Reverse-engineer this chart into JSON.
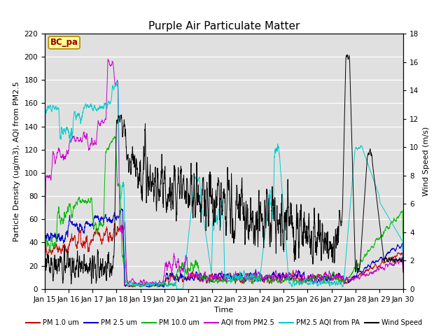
{
  "title": "Purple Air Particulate Matter",
  "xlabel": "Time",
  "ylabel_left": "Particle Density (ug/m3), AQI from PM2.5",
  "ylabel_right": "Wind Speed (m/s)",
  "annotation": "BC_pa",
  "x_tick_labels": [
    "Jan 15",
    "Jan 16",
    "Jan 17",
    "Jan 18",
    "Jan 19",
    "Jan 20",
    "Jan 21",
    "Jan 22",
    "Jan 23",
    "Jan 24",
    "Jan 25",
    "Jan 26",
    "Jan 27",
    "Jan 28",
    "Jan 29",
    "Jan 30"
  ],
  "ylim_left": [
    0,
    220
  ],
  "ylim_right": [
    0,
    18
  ],
  "legend_labels": [
    "PM 1.0 um",
    "PM 2.5 um",
    "PM 10.0 um",
    "AQI from PM2.5",
    "PM2.5 AQI from PA",
    "Wind Speed"
  ],
  "legend_colors": [
    "#cc0000",
    "#0000cc",
    "#00bb00",
    "#cc00cc",
    "#00cccc",
    "#000000"
  ],
  "background_color": "#ffffff",
  "plot_bg_color": "#e0e0e0",
  "title_fontsize": 11,
  "label_fontsize": 8,
  "tick_fontsize": 7.5,
  "right_tick_labels": [
    0,
    2,
    4,
    6,
    8,
    10,
    12,
    14,
    16,
    18
  ],
  "left_tick_labels": [
    0,
    20,
    40,
    60,
    80,
    100,
    120,
    140,
    160,
    180,
    200,
    220
  ]
}
